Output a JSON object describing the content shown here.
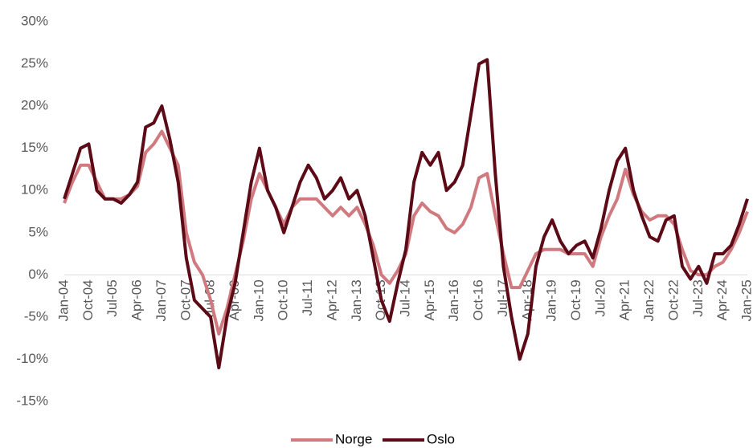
{
  "chart_data": {
    "type": "line",
    "categories": [
      "Jan-04",
      null,
      null,
      "Oct-04",
      null,
      null,
      "Jul-05",
      null,
      null,
      "Apr-06",
      null,
      null,
      "Jan-07",
      null,
      null,
      "Oct-07",
      null,
      null,
      "Jul-08",
      null,
      null,
      "Apr-09",
      null,
      null,
      "Jan-10",
      null,
      null,
      "Oct-10",
      null,
      null,
      "Jul-11",
      null,
      null,
      "Apr-12",
      null,
      null,
      "Jan-13",
      null,
      null,
      "Oct-13",
      null,
      null,
      "Jul-14",
      null,
      null,
      "Apr-15",
      null,
      null,
      "Jan-16",
      null,
      null,
      "Oct-16",
      null,
      null,
      "Jul-17",
      null,
      null,
      "Apr-18",
      null,
      null,
      "Jan-19",
      null,
      null,
      "Oct-19",
      null,
      null,
      "Jul-20",
      null,
      null,
      "Apr-21",
      null,
      null,
      "Jan-22",
      null,
      null,
      "Oct-22",
      null,
      null,
      "Jul-23",
      null,
      null,
      "Apr-24",
      null,
      null,
      "Jan-25"
    ],
    "series": [
      {
        "name": "Norge",
        "color": "#d07a80",
        "values": [
          8.5,
          11,
          13,
          13,
          11,
          9,
          9,
          9,
          9.5,
          10.5,
          14.5,
          15.5,
          17,
          15,
          13,
          5,
          1.5,
          0,
          -3,
          -7,
          -4,
          0,
          4,
          9,
          12,
          10,
          8,
          6,
          8,
          9,
          9,
          9,
          8,
          7,
          8,
          7,
          8,
          6,
          3.5,
          0,
          -1,
          0.5,
          2.5,
          7,
          8.5,
          7.5,
          7,
          5.5,
          5,
          6,
          8,
          11.5,
          12,
          7,
          2.5,
          -1.5,
          -1.5,
          0.5,
          2.5,
          3,
          3,
          3,
          2.5,
          2.5,
          2.5,
          1,
          4.5,
          7,
          9,
          12.5,
          9.5,
          7.5,
          6.5,
          7,
          7,
          6,
          3,
          0.5,
          0,
          0,
          1,
          1.5,
          3,
          5,
          7.5
        ]
      },
      {
        "name": "Oslo",
        "color": "#5c0a16",
        "values": [
          9,
          12,
          15,
          15.5,
          10,
          9,
          9,
          8.5,
          9.5,
          11,
          17.5,
          18,
          20,
          16,
          11,
          2,
          -3,
          -4,
          -5,
          -11,
          -5,
          -1,
          5,
          11,
          15,
          10,
          8,
          5,
          8,
          11,
          13,
          11.5,
          9,
          10,
          11.5,
          9,
          10,
          7,
          2,
          -3,
          -5.5,
          -1,
          3,
          11,
          14.5,
          13,
          14.5,
          10,
          11,
          13,
          19,
          25,
          25.5,
          12,
          1,
          -5,
          -10,
          -7,
          1,
          4.5,
          6.5,
          4,
          2.5,
          3.5,
          4,
          2,
          5.5,
          10,
          13.5,
          15,
          10,
          7,
          4.5,
          4,
          6.5,
          7,
          1,
          -0.5,
          1,
          -1,
          2.5,
          2.5,
          3.5,
          6,
          9
        ]
      }
    ],
    "ylim": [
      -15,
      30
    ],
    "yticks": [
      {
        "value": -15,
        "label": "-15%"
      },
      {
        "value": -10,
        "label": "-10%"
      },
      {
        "value": -5,
        "label": "-5%"
      },
      {
        "value": 0,
        "label": "0%"
      },
      {
        "value": 5,
        "label": "5%"
      },
      {
        "value": 10,
        "label": "10%"
      },
      {
        "value": 15,
        "label": "15%"
      },
      {
        "value": 20,
        "label": "20%"
      },
      {
        "value": 25,
        "label": "25%"
      },
      {
        "value": 30,
        "label": "30%"
      }
    ],
    "legend": "bottom"
  }
}
